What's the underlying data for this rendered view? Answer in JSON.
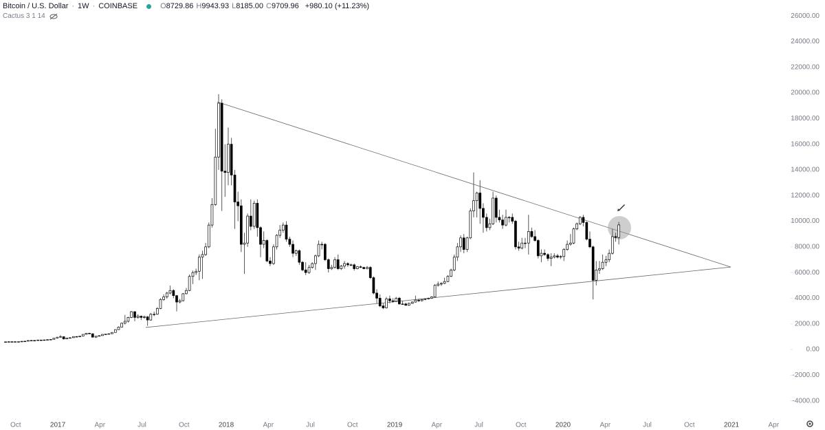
{
  "header": {
    "symbol": "Bitcoin / U.S. Dollar",
    "interval": "1W",
    "exchange": "COINBASE",
    "values": [
      {
        "key": "O",
        "value": "8729.86"
      },
      {
        "key": "H",
        "value": "9943.93"
      },
      {
        "key": "L",
        "value": "8185.00"
      },
      {
        "key": "C",
        "value": "9709.96"
      }
    ],
    "change": "+980.10 (+11.23%)",
    "indicator": "Cactus 3 1 14"
  },
  "chart_data": {
    "type": "candlestick",
    "up_color": "#ffffff",
    "down_color": "#000000",
    "wick_color": "#555555",
    "grid": false,
    "xlim": [
      2016.657,
      2021.351
    ],
    "xticks": [
      {
        "value": 2016.75,
        "label": "Oct"
      },
      2017,
      {
        "value": 2017.25,
        "label": "Apr"
      },
      {
        "value": 2017.5,
        "label": "Jul"
      },
      {
        "value": 2017.75,
        "label": "Oct"
      },
      2018,
      {
        "value": 2018.25,
        "label": "Apr"
      },
      {
        "value": 2018.5,
        "label": "Jul"
      },
      {
        "value": 2018.75,
        "label": "Oct"
      },
      2019,
      {
        "value": 2019.25,
        "label": "Apr"
      },
      {
        "value": 2019.5,
        "label": "Jul"
      },
      {
        "value": 2019.75,
        "label": "Oct"
      },
      2020,
      {
        "value": 2020.25,
        "label": "Apr"
      },
      {
        "value": 2020.5,
        "label": "Jul"
      },
      {
        "value": 2020.75,
        "label": "Oct"
      },
      2021,
      {
        "value": 2021.25,
        "label": "Apr"
      }
    ],
    "ylim": [
      -5200,
      27240
    ],
    "yticks": [
      {
        "value": -4000,
        "label": "-4000.00"
      },
      {
        "value": -2000,
        "label": "-2000.00"
      },
      {
        "value": 0,
        "label": "0.00"
      },
      {
        "value": 2000,
        "label": "2000.00"
      },
      {
        "value": 4000,
        "label": "4000.00"
      },
      {
        "value": 6000,
        "label": "6000.00"
      },
      {
        "value": 8000,
        "label": "8000.00"
      },
      {
        "value": 10000,
        "label": "10000.00"
      },
      {
        "value": 12000,
        "label": "12000.00"
      },
      {
        "value": 14000,
        "label": "14000.00"
      },
      {
        "value": 16000,
        "label": "16000.00"
      },
      {
        "value": 18000,
        "label": "18000.00"
      },
      {
        "value": 20000,
        "label": "20000.00"
      },
      {
        "value": 22000,
        "label": "22000.00"
      },
      {
        "value": 24000,
        "label": "24000.00"
      },
      {
        "value": 26000,
        "label": "26000.00"
      }
    ],
    "x": [
      2016.69,
      2016.709,
      2016.728,
      2016.747,
      2016.767,
      2016.786,
      2016.805,
      2016.824,
      2016.843,
      2016.862,
      2016.882,
      2016.901,
      2016.92,
      2016.939,
      2016.958,
      2016.977,
      2016.997,
      2017.016,
      2017.035,
      2017.054,
      2017.073,
      2017.093,
      2017.112,
      2017.131,
      2017.15,
      2017.169,
      2017.188,
      2017.207,
      2017.227,
      2017.246,
      2017.265,
      2017.284,
      2017.303,
      2017.322,
      2017.342,
      2017.361,
      2017.38,
      2017.399,
      2017.418,
      2017.437,
      2017.457,
      2017.476,
      2017.495,
      2017.514,
      2017.533,
      2017.552,
      2017.572,
      2017.591,
      2017.61,
      2017.629,
      2017.648,
      2017.667,
      2017.687,
      2017.706,
      2017.725,
      2017.744,
      2017.763,
      2017.782,
      2017.802,
      2017.821,
      2017.84,
      2017.859,
      2017.878,
      2017.897,
      2017.916,
      2017.936,
      2017.955,
      2017.974,
      2017.993,
      2018.012,
      2018.031,
      2018.051,
      2018.07,
      2018.089,
      2018.108,
      2018.127,
      2018.146,
      2018.166,
      2018.185,
      2018.204,
      2018.223,
      2018.242,
      2018.261,
      2018.281,
      2018.3,
      2018.319,
      2018.338,
      2018.357,
      2018.377,
      2018.396,
      2018.415,
      2018.434,
      2018.453,
      2018.472,
      2018.492,
      2018.511,
      2018.53,
      2018.549,
      2018.568,
      2018.587,
      2018.607,
      2018.626,
      2018.645,
      2018.664,
      2018.683,
      2018.702,
      2018.722,
      2018.741,
      2018.76,
      2018.779,
      2018.798,
      2018.817,
      2018.837,
      2018.856,
      2018.875,
      2018.894,
      2018.913,
      2018.932,
      2018.951,
      2018.971,
      2018.99,
      2019.009,
      2019.028,
      2019.047,
      2019.066,
      2019.085,
      2019.105,
      2019.124,
      2019.143,
      2019.162,
      2019.181,
      2019.201,
      2019.22,
      2019.239,
      2019.258,
      2019.277,
      2019.296,
      2019.316,
      2019.335,
      2019.354,
      2019.373,
      2019.392,
      2019.411,
      2019.431,
      2019.45,
      2019.469,
      2019.488,
      2019.507,
      2019.526,
      2019.546,
      2019.565,
      2019.584,
      2019.603,
      2019.622,
      2019.641,
      2019.661,
      2019.68,
      2019.699,
      2019.718,
      2019.737,
      2019.756,
      2019.775,
      2019.795,
      2019.814,
      2019.833,
      2019.852,
      2019.871,
      2019.89,
      2019.91,
      2019.929,
      2019.948,
      2019.967,
      2019.986,
      2020.005,
      2020.025,
      2020.044,
      2020.063,
      2020.082,
      2020.101,
      2020.12,
      2020.14,
      2020.159,
      2020.178,
      2020.197,
      2020.216,
      2020.235,
      2020.255,
      2020.274,
      2020.293,
      2020.312,
      2020.331
    ],
    "ohlc": [
      [
        590,
        615,
        585,
        600
      ],
      [
        600,
        620,
        595,
        610
      ],
      [
        610,
        615,
        595,
        605
      ],
      [
        605,
        615,
        600,
        610
      ],
      [
        610,
        620,
        605,
        615
      ],
      [
        615,
        645,
        610,
        640
      ],
      [
        640,
        660,
        630,
        650
      ],
      [
        650,
        710,
        645,
        700
      ],
      [
        700,
        740,
        690,
        710
      ],
      [
        710,
        720,
        690,
        700
      ],
      [
        700,
        745,
        695,
        740
      ],
      [
        740,
        750,
        720,
        730
      ],
      [
        730,
        760,
        725,
        750
      ],
      [
        750,
        775,
        745,
        770
      ],
      [
        770,
        800,
        765,
        790
      ],
      [
        790,
        900,
        785,
        890
      ],
      [
        890,
        980,
        880,
        960
      ],
      [
        960,
        1130,
        950,
        1000
      ],
      [
        1000,
        1010,
        780,
        830
      ],
      [
        830,
        920,
        820,
        900
      ],
      [
        900,
        930,
        880,
        920
      ],
      [
        920,
        1020,
        910,
        1010
      ],
      [
        1010,
        1030,
        980,
        1000
      ],
      [
        1000,
        1060,
        990,
        1050
      ],
      [
        1050,
        1190,
        1040,
        1180
      ],
      [
        1180,
        1290,
        1170,
        1270
      ],
      [
        1270,
        1300,
        1200,
        1230
      ],
      [
        1230,
        1240,
        940,
        960
      ],
      [
        960,
        1050,
        900,
        1040
      ],
      [
        1040,
        1100,
        1020,
        1080
      ],
      [
        1080,
        1190,
        1070,
        1180
      ],
      [
        1180,
        1210,
        1160,
        1200
      ],
      [
        1200,
        1240,
        1180,
        1230
      ],
      [
        1230,
        1340,
        1220,
        1330
      ],
      [
        1330,
        1560,
        1320,
        1550
      ],
      [
        1550,
        1800,
        1540,
        1750
      ],
      [
        1750,
        2100,
        1740,
        2050
      ],
      [
        2050,
        2700,
        1950,
        2200
      ],
      [
        2200,
        2550,
        2100,
        2500
      ],
      [
        2500,
        3000,
        2450,
        2950
      ],
      [
        2950,
        2980,
        2200,
        2500
      ],
      [
        2500,
        2750,
        2400,
        2600
      ],
      [
        2600,
        2650,
        2300,
        2500
      ],
      [
        2500,
        2650,
        2400,
        2550
      ],
      [
        2550,
        2600,
        1850,
        2300
      ],
      [
        2300,
        2850,
        2250,
        2750
      ],
      [
        2750,
        2950,
        2600,
        2750
      ],
      [
        2750,
        3300,
        2700,
        3200
      ],
      [
        3200,
        4000,
        3150,
        3900
      ],
      [
        3900,
        4300,
        3800,
        4100
      ],
      [
        4100,
        4500,
        3950,
        4400
      ],
      [
        4400,
        4980,
        4300,
        4600
      ],
      [
        4600,
        4700,
        4000,
        4200
      ],
      [
        4200,
        4250,
        2970,
        3700
      ],
      [
        3700,
        3950,
        3600,
        3800
      ],
      [
        3800,
        4400,
        3750,
        4350
      ],
      [
        4350,
        4800,
        4300,
        4600
      ],
      [
        4600,
        5850,
        4550,
        5700
      ],
      [
        5700,
        6150,
        5100,
        6000
      ],
      [
        6000,
        6300,
        5800,
        6100
      ],
      [
        6100,
        7400,
        5400,
        7200
      ],
      [
        7200,
        7700,
        5500,
        7400
      ],
      [
        7400,
        8300,
        7300,
        8000
      ],
      [
        8000,
        9900,
        7900,
        9700
      ],
      [
        9700,
        11800,
        9500,
        11300
      ],
      [
        11300,
        17200,
        11200,
        15000
      ],
      [
        15000,
        19900,
        14000,
        19200
      ],
      [
        19200,
        19500,
        10800,
        13900
      ],
      [
        13900,
        16000,
        11900,
        13800
      ],
      [
        13800,
        17300,
        12800,
        16000
      ],
      [
        16000,
        16500,
        12800,
        13600
      ],
      [
        13600,
        14000,
        9400,
        11500
      ],
      [
        11500,
        12300,
        10000,
        11200
      ],
      [
        11200,
        11700,
        7600,
        8200
      ],
      [
        8200,
        9100,
        5900,
        8300
      ],
      [
        8300,
        10600,
        8000,
        10400
      ],
      [
        10400,
        11700,
        9300,
        9600
      ],
      [
        9600,
        11600,
        9400,
        11400
      ],
      [
        11400,
        11700,
        8800,
        9500
      ],
      [
        9500,
        9600,
        7200,
        8200
      ],
      [
        8200,
        9200,
        7900,
        8500
      ],
      [
        8500,
        8600,
        6800,
        6900
      ],
      [
        6900,
        7200,
        6500,
        6700
      ],
      [
        6700,
        8200,
        6600,
        8000
      ],
      [
        8000,
        9000,
        7800,
        8900
      ],
      [
        8900,
        9700,
        8700,
        9300
      ],
      [
        9300,
        9900,
        9100,
        9700
      ],
      [
        9700,
        10000,
        8400,
        8600
      ],
      [
        8600,
        8800,
        8000,
        8200
      ],
      [
        8200,
        8500,
        7200,
        7500
      ],
      [
        7500,
        7800,
        7300,
        7700
      ],
      [
        7700,
        7800,
        6600,
        6800
      ],
      [
        6800,
        6900,
        6100,
        6200
      ],
      [
        6200,
        6800,
        5800,
        6000
      ],
      [
        6000,
        6600,
        5900,
        6400
      ],
      [
        6400,
        6800,
        6300,
        6700
      ],
      [
        6700,
        7400,
        6200,
        7300
      ],
      [
        7300,
        8500,
        7200,
        8200
      ],
      [
        8200,
        8400,
        7800,
        8200
      ],
      [
        8200,
        8300,
        6900,
        7000
      ],
      [
        7000,
        7100,
        6000,
        6300
      ],
      [
        6300,
        6600,
        6200,
        6400
      ],
      [
        6400,
        7200,
        6300,
        7000
      ],
      [
        7000,
        7400,
        6200,
        6300
      ],
      [
        6300,
        6600,
        6200,
        6500
      ],
      [
        6500,
        6900,
        6300,
        6700
      ],
      [
        6700,
        6800,
        6450,
        6600
      ],
      [
        6600,
        6700,
        6500,
        6600
      ],
      [
        6600,
        6700,
        6150,
        6300
      ],
      [
        6300,
        6500,
        6250,
        6450
      ],
      [
        6450,
        6550,
        6350,
        6400
      ],
      [
        6400,
        6450,
        6250,
        6300
      ],
      [
        6300,
        6500,
        6250,
        6400
      ],
      [
        6400,
        6500,
        5500,
        5600
      ],
      [
        5600,
        5700,
        4300,
        4400
      ],
      [
        4400,
        4700,
        3600,
        4000
      ],
      [
        4000,
        4300,
        3300,
        3400
      ],
      [
        3400,
        3600,
        3150,
        3250
      ],
      [
        3250,
        4100,
        3200,
        3950
      ],
      [
        3950,
        4200,
        3600,
        3800
      ],
      [
        3800,
        4000,
        3650,
        3750
      ],
      [
        3750,
        4100,
        3700,
        4000
      ],
      [
        4000,
        4100,
        3500,
        3550
      ],
      [
        3550,
        3800,
        3500,
        3550
      ],
      [
        3550,
        3650,
        3400,
        3450
      ],
      [
        3450,
        3650,
        3400,
        3600
      ],
      [
        3600,
        3750,
        3550,
        3700
      ],
      [
        3700,
        4200,
        3650,
        3850
      ],
      [
        3850,
        3950,
        3700,
        3800
      ],
      [
        3800,
        3950,
        3750,
        3900
      ],
      [
        3900,
        4000,
        3850,
        3950
      ],
      [
        3950,
        4050,
        3900,
        4000
      ],
      [
        4000,
        4150,
        3950,
        4100
      ],
      [
        4100,
        5100,
        4050,
        5000
      ],
      [
        5000,
        5300,
        4900,
        5100
      ],
      [
        5100,
        5250,
        4950,
        5150
      ],
      [
        5150,
        5600,
        5100,
        5300
      ],
      [
        5300,
        5800,
        5250,
        5700
      ],
      [
        5700,
        6300,
        5650,
        6200
      ],
      [
        6200,
        7400,
        6100,
        7200
      ],
      [
        7200,
        8300,
        6900,
        8000
      ],
      [
        8000,
        8900,
        7600,
        8700
      ],
      [
        8700,
        9000,
        7500,
        7800
      ],
      [
        7800,
        8800,
        7600,
        8700
      ],
      [
        8700,
        11000,
        8600,
        10800
      ],
      [
        10800,
        13800,
        10300,
        11600
      ],
      [
        11600,
        12300,
        10300,
        12200
      ],
      [
        12200,
        13200,
        9800,
        11000
      ],
      [
        11000,
        11400,
        9100,
        10300
      ],
      [
        10300,
        10600,
        9200,
        9500
      ],
      [
        9500,
        10200,
        9300,
        9800
      ],
      [
        9800,
        12300,
        9700,
        11800
      ],
      [
        11800,
        12000,
        9900,
        10300
      ],
      [
        10300,
        10900,
        9900,
        10100
      ],
      [
        10100,
        10500,
        9400,
        9700
      ],
      [
        9700,
        10900,
        9600,
        10300
      ],
      [
        10300,
        10400,
        9900,
        10300
      ],
      [
        10300,
        10600,
        9800,
        10000
      ],
      [
        10000,
        10100,
        7800,
        8000
      ],
      [
        8000,
        8400,
        7700,
        7900
      ],
      [
        7900,
        8700,
        7800,
        8300
      ],
      [
        8300,
        8700,
        7900,
        8300
      ],
      [
        8300,
        10500,
        7400,
        9200
      ],
      [
        9200,
        9500,
        8700,
        8800
      ],
      [
        8800,
        9300,
        8400,
        8500
      ],
      [
        8500,
        8600,
        7100,
        7300
      ],
      [
        7300,
        7800,
        6800,
        7500
      ],
      [
        7500,
        7800,
        7300,
        7400
      ],
      [
        7400,
        7500,
        6900,
        7100
      ],
      [
        7100,
        7500,
        6500,
        7200
      ],
      [
        7200,
        7500,
        7100,
        7300
      ],
      [
        7300,
        7450,
        7100,
        7200
      ],
      [
        7200,
        7350,
        7050,
        7250
      ],
      [
        7250,
        7900,
        6900,
        7800
      ],
      [
        7800,
        8500,
        7700,
        8200
      ],
      [
        8200,
        9000,
        8100,
        8300
      ],
      [
        8300,
        9500,
        8200,
        9400
      ],
      [
        9400,
        9900,
        9300,
        9800
      ],
      [
        9800,
        10400,
        9700,
        10300
      ],
      [
        10300,
        10500,
        9600,
        9900
      ],
      [
        9900,
        10000,
        8500,
        8600
      ],
      [
        8600,
        9200,
        7900,
        8000
      ],
      [
        8000,
        8100,
        3900,
        5400
      ],
      [
        5400,
        6900,
        5000,
        6200
      ],
      [
        6200,
        6900,
        5900,
        6300
      ],
      [
        6300,
        7400,
        6200,
        6800
      ],
      [
        6800,
        7300,
        6500,
        7000
      ],
      [
        7000,
        7800,
        6800,
        7500
      ],
      [
        7500,
        9400,
        7400,
        8800
      ],
      [
        8800,
        9100,
        8400,
        8730
      ],
      [
        8729.86,
        9943.93,
        8185.0,
        9709.96
      ]
    ],
    "trendlines": [
      {
        "x": [
          2017.947,
          2020.996
        ],
        "y": [
          19300,
          6430
        ]
      },
      {
        "x": [
          2017.522,
          2020.996
        ],
        "y": [
          1720,
          6430
        ]
      }
    ]
  }
}
